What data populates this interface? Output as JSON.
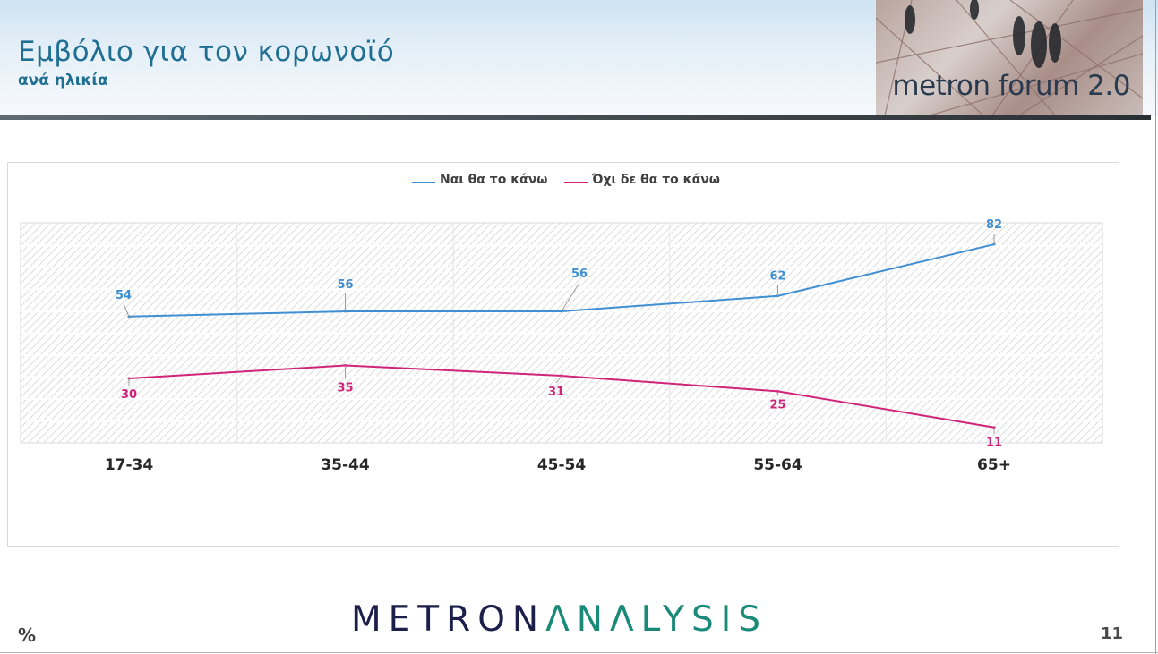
{
  "header": {
    "title": "Εμβόλιο για τον κορωνοϊό",
    "subtitle": "ανά ηλικία",
    "logo_text": "metron forum 2.0"
  },
  "footer": {
    "brand_part1": "METRON",
    "brand_part2": "ΛNΛLYSIS",
    "unit": "%",
    "page_number": "11"
  },
  "colors": {
    "yes": "#3f8fd2",
    "no": "#d0247a",
    "title": "#1f6f93"
  },
  "chart_data": {
    "type": "line",
    "categories": [
      "17-34",
      "35-44",
      "45-54",
      "55-64",
      "65+"
    ],
    "series": [
      {
        "name": "Ναι θα το κάνω",
        "values": [
          54,
          56,
          56,
          62,
          82
        ]
      },
      {
        "name": "Όχι δε θα το κάνω",
        "values": [
          30,
          35,
          31,
          25,
          11
        ]
      }
    ],
    "ylim": [
      0,
      100
    ],
    "grid": true,
    "legend_position": "top-center",
    "data_labels": true
  }
}
